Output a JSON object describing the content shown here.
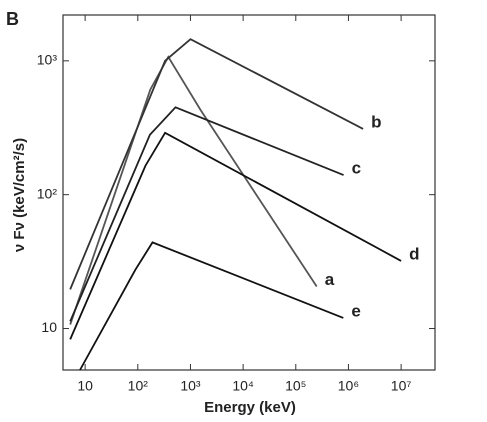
{
  "chart_data": {
    "type": "line",
    "panel_label": "B",
    "x_label": "Energy   (keV)",
    "y_label": "ν Fν  (keV/cm²/s)",
    "log_x": true,
    "log_y": true,
    "xlim": [
      3.8,
      44000000
    ],
    "ylim": [
      4.9,
      2200
    ],
    "xticks": [
      {
        "value": 10,
        "label": "10"
      },
      {
        "value": 100,
        "label": "10²"
      },
      {
        "value": 1000,
        "label": "10³"
      },
      {
        "value": 10000,
        "label": "10⁴"
      },
      {
        "value": 100000,
        "label": "10⁵"
      },
      {
        "value": 1000000,
        "label": "10⁶"
      },
      {
        "value": 10000000,
        "label": "10⁷"
      }
    ],
    "yticks": [
      {
        "value": 10,
        "label": "10"
      },
      {
        "value": 100,
        "label": "10²"
      },
      {
        "value": 1000,
        "label": "10³"
      }
    ],
    "series": [
      {
        "name": "a",
        "color": "#555555",
        "x": [
          5.2,
          173,
          380,
          1550,
          250000
        ],
        "values": [
          10.7,
          610,
          1070,
          430,
          20.6
        ]
      },
      {
        "name": "b",
        "color": "#333333",
        "x": [
          5.2,
          330,
          1000,
          1900000
        ],
        "values": [
          19.6,
          1000,
          1450,
          310
        ]
      },
      {
        "name": "c",
        "color": "#222222",
        "x": [
          5.2,
          170,
          520,
          810000
        ],
        "values": [
          11.3,
          280,
          450,
          140
        ]
      },
      {
        "name": "d",
        "color": "#111111",
        "x": [
          5.2,
          140,
          330,
          10000000
        ],
        "values": [
          8.3,
          165,
          290,
          32
        ]
      },
      {
        "name": "e",
        "color": "#111111",
        "x": [
          8,
          90,
          190,
          800000
        ],
        "values": [
          4.9,
          27.5,
          44,
          12
        ]
      }
    ]
  }
}
